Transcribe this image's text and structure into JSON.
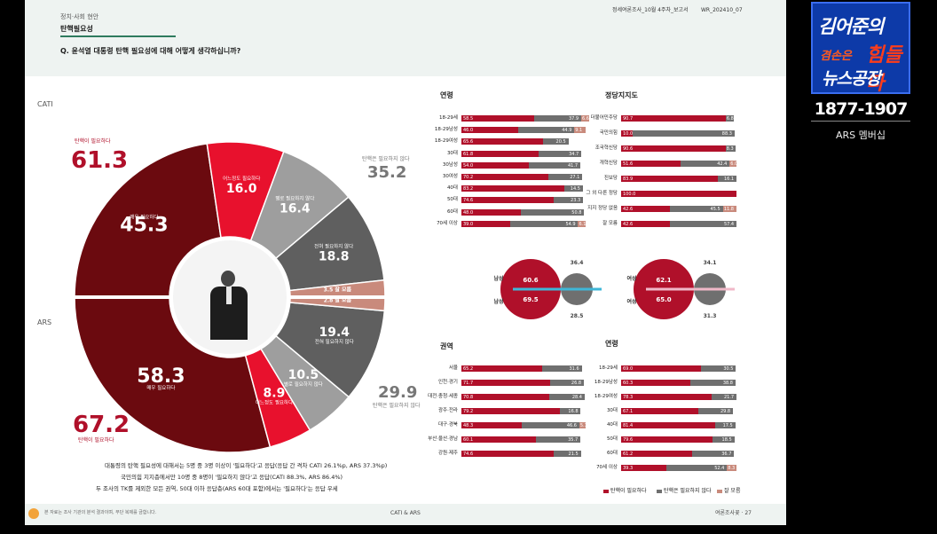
{
  "header": {
    "category": "정치·사회 현안",
    "section": "탄핵필요성",
    "question": "Q. 윤석열 대통령 탄핵 필요성에 대해 어떻게 생각하십니까?",
    "report_code": "정세여론조사_10월 4주차_보고서",
    "report_id": "WR_202410_07"
  },
  "logo": {
    "line1": "김어준의",
    "line2": "겸손은",
    "line2b": "힘들다",
    "line3": "뉴스공장",
    "phone": "1877-1907",
    "phone_note": "ARS 멤버십"
  },
  "donut": {
    "cati_label": "CATI",
    "ars_label": "ARS",
    "cati_need_label": "탄핵이 필요하다",
    "cati_need_value": "61.3",
    "cati_noneed_label": "탄핵은 필요하지 않다",
    "cati_noneed_value": "35.2",
    "ars_need_label": "탄핵이 필요하다",
    "ars_need_value": "67.2",
    "ars_noneed_label": "탄핵은 필요하지 않다",
    "ars_noneed_value": "29.9",
    "cati_segments": [
      {
        "label": "매우 필요하다",
        "value": 45.3,
        "color": "#6b0a0f"
      },
      {
        "label": "어느정도 필요하다",
        "value": 16.0,
        "color": "#e8112d"
      },
      {
        "label": "별로 필요하지 않다",
        "value": 16.4,
        "color": "#9e9e9e"
      },
      {
        "label": "전혀 필요하지 않다",
        "value": 18.8,
        "color": "#5f5f5f"
      },
      {
        "label": "잘 모름",
        "value": 3.5,
        "color": "#c98a7c"
      }
    ],
    "ars_segments": [
      {
        "label": "매우 필요하다",
        "value": 58.3,
        "color": "#6b0a0f"
      },
      {
        "label": "어느정도 필요하다",
        "value": 8.9,
        "color": "#e8112d"
      },
      {
        "label": "별로 필요하지 않다",
        "value": 10.5,
        "color": "#9e9e9e"
      },
      {
        "label": "전혀 필요하지 않다",
        "value": 19.4,
        "color": "#5f5f5f"
      },
      {
        "label": "잘 모름",
        "value": 2.8,
        "color": "#c98a7c"
      }
    ],
    "seg_text": {
      "very_need": "매우 필요하다",
      "some_need": "어느정도 필요하다",
      "not_much": "별로 필요하지 않다",
      "not_at_all": "전혀 필요하지 않다",
      "dont_know": "잘 모름"
    }
  },
  "age_cati": {
    "title": "연령",
    "rows": [
      {
        "label": "18-29세",
        "need": 58.5,
        "no": 37.9,
        "dk": 6.6
      },
      {
        "label": "18-29남성",
        "need": 46.0,
        "no": 44.9,
        "dk": 9.1
      },
      {
        "label": "18-29여성",
        "need": 65.6,
        "no": 20.5,
        "dk": null
      },
      {
        "label": "30대",
        "need": 61.8,
        "no": 34.7,
        "dk": null
      },
      {
        "label": "30남성",
        "need": 54.0,
        "no": 41.7,
        "dk": null
      },
      {
        "label": "30여성",
        "need": 70.2,
        "no": 27.1,
        "dk": null
      },
      {
        "label": "40대",
        "need": 83.2,
        "no": 14.5,
        "dk": null
      },
      {
        "label": "50대",
        "need": 74.6,
        "no": 23.3,
        "dk": null
      },
      {
        "label": "60대",
        "need": 48.0,
        "no": 50.8,
        "dk": null
      },
      {
        "label": "70세 이상",
        "need": 39.0,
        "no": 54.9,
        "dk": 6.1
      }
    ]
  },
  "party": {
    "title": "정당지지도",
    "rows": [
      {
        "label": "더불어민주당",
        "need": 90.7,
        "no": 6.8,
        "dk": null
      },
      {
        "label": "국민의힘",
        "need": 10.0,
        "no": 88.3,
        "dk": null
      },
      {
        "label": "조국혁신당",
        "need": 90.6,
        "no": 8.3,
        "dk": null
      },
      {
        "label": "개혁신당",
        "need": 51.6,
        "no": 42.4,
        "dk": 6.0
      },
      {
        "label": "진보당",
        "need": 83.9,
        "no": 16.1,
        "dk": null
      },
      {
        "label": "그 외 다른 정당",
        "need": 100.0,
        "no": null,
        "dk": null
      },
      {
        "label": "지지 정당 없음",
        "need": 42.6,
        "no": 45.5,
        "dk": 11.8
      },
      {
        "label": "잘 모름",
        "need": 42.6,
        "no": 57.4,
        "dk": null
      }
    ]
  },
  "gender": {
    "items": [
      {
        "label": "남성",
        "cati_need": "60.6",
        "cati_no": "36.4",
        "ars_need": "69.5",
        "ars_no": "28.5"
      },
      {
        "label": "여성",
        "cati_need": "62.1",
        "cati_no": "34.1",
        "ars_need": "65.0",
        "ars_no": "31.3"
      }
    ]
  },
  "region": {
    "title": "권역",
    "rows": [
      {
        "label": "서울",
        "need": 65.2,
        "no": 31.6,
        "dk": null
      },
      {
        "label": "인천·경기",
        "need": 71.7,
        "no": 26.8,
        "dk": null
      },
      {
        "label": "대전·충청·세종",
        "need": 70.8,
        "no": 28.4,
        "dk": null
      },
      {
        "label": "광주·전라",
        "need": 79.2,
        "no": 16.8,
        "dk": null
      },
      {
        "label": "대구·경북",
        "need": 48.3,
        "no": 46.6,
        "dk": 5.1
      },
      {
        "label": "부산·울산·경남",
        "need": 60.1,
        "no": 35.7,
        "dk": null
      },
      {
        "label": "강원·제주",
        "need": 74.6,
        "no": 21.5,
        "dk": null
      }
    ]
  },
  "age_ars": {
    "title": "연령",
    "rows": [
      {
        "label": "18-29세",
        "need": 69.0,
        "no": 30.5,
        "dk": null
      },
      {
        "label": "18-29남성",
        "need": 60.3,
        "no": 38.8,
        "dk": null
      },
      {
        "label": "18-29여성",
        "need": 78.3,
        "no": 21.7,
        "dk": null
      },
      {
        "label": "30대",
        "need": 67.1,
        "no": 29.8,
        "dk": null
      },
      {
        "label": "40대",
        "need": 81.4,
        "no": 17.5,
        "dk": null
      },
      {
        "label": "50대",
        "need": 79.6,
        "no": 18.5,
        "dk": null
      },
      {
        "label": "60대",
        "need": 61.2,
        "no": 36.7,
        "dk": null
      },
      {
        "label": "70세 이상",
        "need": 39.3,
        "no": 52.4,
        "dk": 8.3
      }
    ]
  },
  "legend": {
    "need": "탄핵이 필요하다",
    "no": "탄핵은 필요하지 않다",
    "dk": "잘 모름"
  },
  "summary": {
    "line1": "대통령의 탄핵 필요성에 대해서는 5명 중 3명 이상이 '필요하다'고 응답(응답 간 격차 CATI 26.1%p, ARS 37.3%p)",
    "line2": "국민의힘 지지층에서만 10명 중 8명이 '필요하지 않다'고 응답(CATI 88.3%, ARS 86.4%)",
    "line3": "두 조사의 TK를 제외한 모든 권역, 50대 이하 응답층(ARS 60대 포함)에서는 '필요하다'는 응답 우세"
  },
  "footer": {
    "left": "본 자료는 조사 기관의 분석 결과이며, 무단 복제를 금합니다.",
    "center": "CATI & ARS",
    "right": "여론조사꽃 · 27"
  },
  "colors": {
    "need": "#b0102a",
    "no": "#6f6f6f",
    "dk": "#c98a7c"
  }
}
